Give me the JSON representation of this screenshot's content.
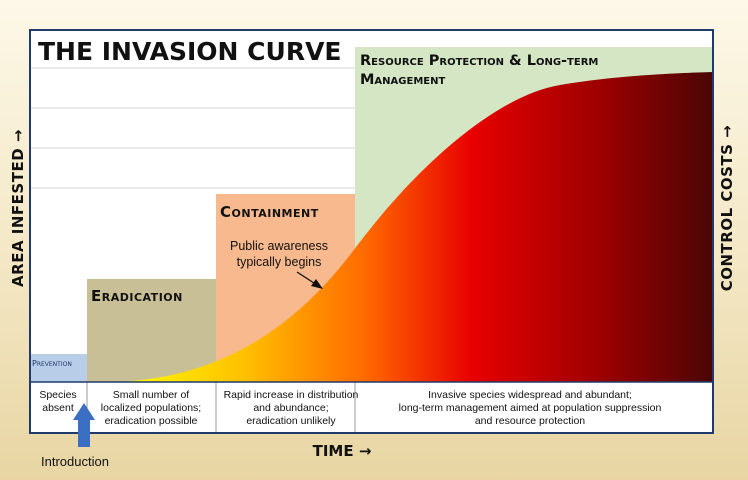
{
  "title": "THE INVASION CURVE",
  "y_axis_left": "AREA INFESTED →",
  "y_axis_right": "CONTROL COSTS →",
  "x_axis": "TIME →",
  "introduction_label": "Introduction",
  "stages": {
    "prevention": {
      "label": "Prevention",
      "color": "#b8cde8"
    },
    "eradication": {
      "label": "Eradication",
      "color": "#c9bf96"
    },
    "containment": {
      "label": "Containment",
      "color": "#f7b98d"
    },
    "resource": {
      "line1": "Resource Protection & Long-term",
      "line2": "Management",
      "color": "#d4e6c4"
    }
  },
  "annotation": {
    "line1": "Public awareness",
    "line2": "typically begins"
  },
  "descriptions": {
    "prevention": [
      "Species",
      "absent"
    ],
    "eradication": [
      "Small number of",
      "localized populations;",
      "eradication possible"
    ],
    "containment": [
      "Rapid increase in distribution",
      "and abundance;",
      "eradication unlikely"
    ],
    "resource": [
      "Invasive species widespread and abundant;",
      "long-term management aimed at population suppression",
      "and resource protection"
    ]
  },
  "curve_colors": [
    "#ffff00",
    "#ffc000",
    "#ff6a00",
    "#e80000",
    "#9a0000",
    "#4a0606"
  ],
  "frame_color": "#1f3a6b",
  "arrow_color": "#3a6fc4"
}
